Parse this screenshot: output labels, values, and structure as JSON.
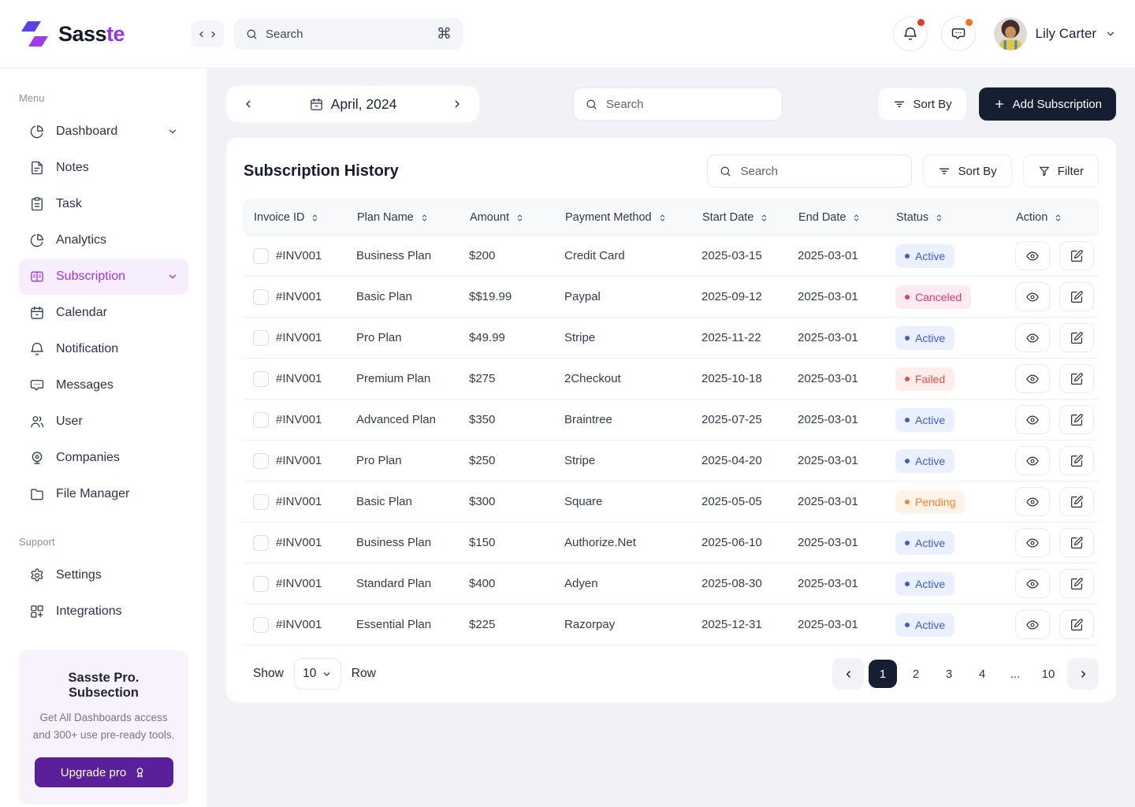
{
  "theme": {
    "accent_purple": "#9333EA",
    "dark_navy": "#161E31",
    "promo_purple": "#5B1F9A",
    "badge_red": "#E03A2E",
    "badge_orange": "#F97316"
  },
  "brand": {
    "name_primary": "Sass",
    "name_accent": "te"
  },
  "topbar": {
    "search_placeholder": "Search",
    "search_shortcut": "⌘",
    "user_name": "Lily Carter"
  },
  "sidebar": {
    "menu_label": "Menu",
    "items": [
      {
        "label": "Dashboard",
        "icon": "pie-chart-icon",
        "expandable": true,
        "active": false
      },
      {
        "label": "Notes",
        "icon": "note-icon",
        "expandable": false,
        "active": false
      },
      {
        "label": "Task",
        "icon": "clipboard-icon",
        "expandable": false,
        "active": false
      },
      {
        "label": "Analytics",
        "icon": "pie-chart-icon",
        "expandable": false,
        "active": false
      },
      {
        "label": "Subscription",
        "icon": "subscription-card-icon",
        "expandable": true,
        "active": true
      },
      {
        "label": "Calendar",
        "icon": "calendar-icon",
        "expandable": false,
        "active": false
      },
      {
        "label": "Notification",
        "icon": "bell-icon",
        "expandable": false,
        "active": false
      },
      {
        "label": "Messages",
        "icon": "chat-icon",
        "expandable": false,
        "active": false
      },
      {
        "label": "User",
        "icon": "users-icon",
        "expandable": false,
        "active": false
      },
      {
        "label": "Companies",
        "icon": "companies-icon",
        "expandable": false,
        "active": false
      },
      {
        "label": "File Manager",
        "icon": "folder-icon",
        "expandable": false,
        "active": false
      }
    ],
    "support_label": "Support",
    "support_items": [
      {
        "label": "Settings",
        "icon": "gear-icon",
        "expandable": false,
        "active": false
      },
      {
        "label": "Integrations",
        "icon": "integrations-icon",
        "expandable": false,
        "active": false
      }
    ],
    "promo": {
      "title": "Sasste Pro. Subsection",
      "description": "Get All Dashboards access and 300+ use pre-ready tools.",
      "button_label": "Upgrade pro"
    }
  },
  "content_header": {
    "period": "April, 2024",
    "search_placeholder": "Search",
    "sort_by_label": "Sort By",
    "add_subscription_label": "Add Subscription"
  },
  "card": {
    "title": "Subscription History",
    "search_placeholder": "Search",
    "sort_by_label": "Sort By",
    "filter_label": "Filter"
  },
  "table": {
    "columns": [
      "Invoice ID",
      "Plan Name",
      "Amount",
      "Payment Method",
      "Start Date",
      "End Date",
      "Status",
      "Action"
    ],
    "rows": [
      {
        "invoice_id": "#INV001",
        "plan": "Business Plan",
        "amount": "$200",
        "method": "Credit Card",
        "start_date": "2025-03-15",
        "end_date": "2025-03-01",
        "status": "Active"
      },
      {
        "invoice_id": "#INV001",
        "plan": "Basic Plan",
        "amount": "$$19.99",
        "method": "Paypal",
        "start_date": "2025-09-12",
        "end_date": "2025-03-01",
        "status": "Canceled"
      },
      {
        "invoice_id": "#INV001",
        "plan": "Pro Plan",
        "amount": "$49.99",
        "method": "Stripe",
        "start_date": "2025-11-22",
        "end_date": "2025-03-01",
        "status": "Active"
      },
      {
        "invoice_id": "#INV001",
        "plan": "Premium Plan",
        "amount": "$275",
        "method": "2Checkout",
        "start_date": "2025-10-18",
        "end_date": "2025-03-01",
        "status": "Failed"
      },
      {
        "invoice_id": "#INV001",
        "plan": "Advanced Plan",
        "amount": "$350",
        "method": "Braintree",
        "start_date": "2025-07-25",
        "end_date": "2025-03-01",
        "status": "Active"
      },
      {
        "invoice_id": "#INV001",
        "plan": "Pro Plan",
        "amount": "$250",
        "method": "Stripe",
        "start_date": "2025-04-20",
        "end_date": "2025-03-01",
        "status": "Active"
      },
      {
        "invoice_id": "#INV001",
        "plan": "Basic Plan",
        "amount": "$300",
        "method": "Square",
        "start_date": "2025-05-05",
        "end_date": "2025-03-01",
        "status": "Pending"
      },
      {
        "invoice_id": "#INV001",
        "plan": "Business Plan",
        "amount": "$150",
        "method": "Authorize.Net",
        "start_date": "2025-06-10",
        "end_date": "2025-03-01",
        "status": "Active"
      },
      {
        "invoice_id": "#INV001",
        "plan": "Standard Plan",
        "amount": "$400",
        "method": "Adyen",
        "start_date": "2025-08-30",
        "end_date": "2025-03-01",
        "status": "Active"
      },
      {
        "invoice_id": "#INV001",
        "plan": "Essential Plan",
        "amount": "$225",
        "method": "Razorpay",
        "start_date": "2025-12-31",
        "end_date": "2025-03-01",
        "status": "Active"
      }
    ],
    "status_colors": {
      "Active": {
        "text": "#3D5BD7",
        "bg": "#EAF0FD"
      },
      "Canceled": {
        "text": "#E8356A",
        "bg": "#FDEBF1"
      },
      "Failed": {
        "text": "#E74C4C",
        "bg": "#FDEEEC"
      },
      "Pending": {
        "text": "#F9822D",
        "bg": "#FEF3E8"
      }
    }
  },
  "pagination": {
    "show_label": "Show",
    "per_page": "10",
    "row_label": "Row",
    "pages": [
      "1",
      "2",
      "3",
      "4",
      "...",
      "10"
    ],
    "active_page": "1"
  }
}
